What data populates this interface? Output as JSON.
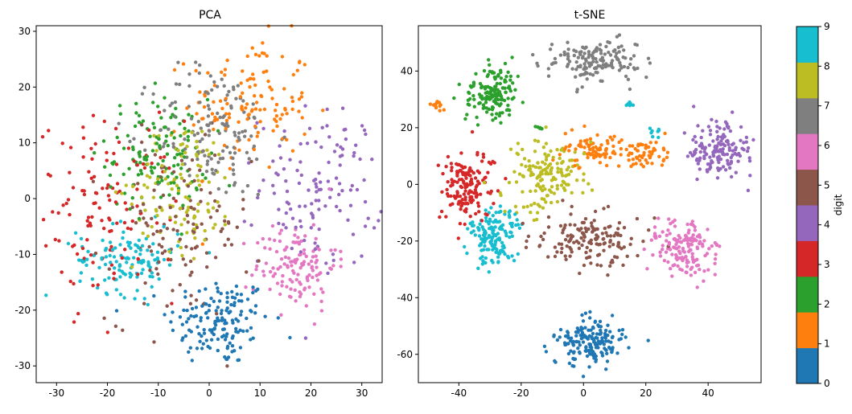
{
  "chart_data": [
    {
      "type": "scatter",
      "title": "PCA",
      "xlim": [
        -34,
        34
      ],
      "ylim": [
        -33,
        31
      ],
      "xticks": [
        -30,
        -20,
        -10,
        0,
        10,
        20,
        30
      ],
      "yticks": [
        -30,
        -20,
        -10,
        0,
        10,
        20,
        30
      ],
      "color_by": "digit",
      "clusters": [
        {
          "digit": 0,
          "center": [
            2,
            -22
          ],
          "spread": [
            5,
            4
          ],
          "count": 150
        },
        {
          "digit": 1,
          "center": [
            8,
            17
          ],
          "spread": [
            6,
            6
          ],
          "count": 130
        },
        {
          "digit": 2,
          "center": [
            -10,
            8
          ],
          "spread": [
            5,
            5
          ],
          "count": 130
        },
        {
          "digit": 3,
          "center": [
            -20,
            -2
          ],
          "spread": [
            7,
            8
          ],
          "count": 130
        },
        {
          "digit": 4,
          "center": [
            22,
            2
          ],
          "spread": [
            6,
            7
          ],
          "count": 130
        },
        {
          "digit": 5,
          "center": [
            -6,
            -6
          ],
          "spread": [
            7,
            8
          ],
          "count": 120
        },
        {
          "digit": 6,
          "center": [
            17,
            -12
          ],
          "spread": [
            4,
            4
          ],
          "count": 130
        },
        {
          "digit": 7,
          "center": [
            1,
            12
          ],
          "spread": [
            6,
            6
          ],
          "count": 140
        },
        {
          "digit": 8,
          "center": [
            -5,
            2
          ],
          "spread": [
            5,
            6
          ],
          "count": 120
        },
        {
          "digit": 9,
          "center": [
            -16,
            -11
          ],
          "spread": [
            5,
            3
          ],
          "count": 120
        }
      ]
    },
    {
      "type": "scatter",
      "title": "t-SNE",
      "xlim": [
        -53,
        57
      ],
      "ylim": [
        -70,
        56
      ],
      "xticks": [
        -40,
        -20,
        0,
        20,
        40
      ],
      "yticks": [
        -60,
        -40,
        -20,
        0,
        20,
        40
      ],
      "color_by": "digit",
      "clusters": [
        {
          "digit": 0,
          "center": [
            2,
            -56
          ],
          "spread": [
            5,
            4
          ],
          "count": 170
        },
        {
          "digit": 1,
          "center": [
            3,
            12
          ],
          "spread": [
            5,
            3
          ],
          "count": 80
        },
        {
          "digit": 1,
          "center": [
            19,
            11
          ],
          "spread": [
            4,
            2.5
          ],
          "count": 60
        },
        {
          "digit": 1,
          "center": [
            -47,
            28
          ],
          "spread": [
            1,
            1.2
          ],
          "count": 15
        },
        {
          "digit": 2,
          "center": [
            -29,
            32
          ],
          "spread": [
            4,
            5
          ],
          "count": 150
        },
        {
          "digit": 2,
          "center": [
            -14,
            20
          ],
          "spread": [
            0.8,
            0.6
          ],
          "count": 6
        },
        {
          "digit": 3,
          "center": [
            -38,
            -1
          ],
          "spread": [
            4,
            6
          ],
          "count": 150
        },
        {
          "digit": 3,
          "center": [
            -30,
            8
          ],
          "spread": [
            1.2,
            0.8
          ],
          "count": 6
        },
        {
          "digit": 4,
          "center": [
            43,
            12
          ],
          "spread": [
            5,
            5
          ],
          "count": 150
        },
        {
          "digit": 5,
          "center": [
            2,
            -20
          ],
          "spread": [
            8,
            5
          ],
          "count": 150
        },
        {
          "digit": 6,
          "center": [
            32,
            -22
          ],
          "spread": [
            5,
            5
          ],
          "count": 150
        },
        {
          "digit": 7,
          "center": [
            5,
            43
          ],
          "spread": [
            7,
            4
          ],
          "count": 150
        },
        {
          "digit": 8,
          "center": [
            -12,
            3
          ],
          "spread": [
            6,
            6
          ],
          "count": 150
        },
        {
          "digit": 9,
          "center": [
            -29,
            -19
          ],
          "spread": [
            4,
            5
          ],
          "count": 150
        },
        {
          "digit": 9,
          "center": [
            23,
            18
          ],
          "spread": [
            1,
            1.5
          ],
          "count": 8
        },
        {
          "digit": 9,
          "center": [
            15,
            28
          ],
          "spread": [
            1,
            1
          ],
          "count": 6
        }
      ]
    }
  ],
  "colorbar": {
    "label": "digit",
    "ticks": [
      "0",
      "1",
      "2",
      "3",
      "4",
      "5",
      "6",
      "7",
      "8",
      "9"
    ],
    "colors": [
      "#1f77b4",
      "#ff7f0e",
      "#2ca02c",
      "#d62728",
      "#9467bd",
      "#8c564b",
      "#e377c2",
      "#7f7f7f",
      "#bcbd22",
      "#17becf"
    ]
  }
}
